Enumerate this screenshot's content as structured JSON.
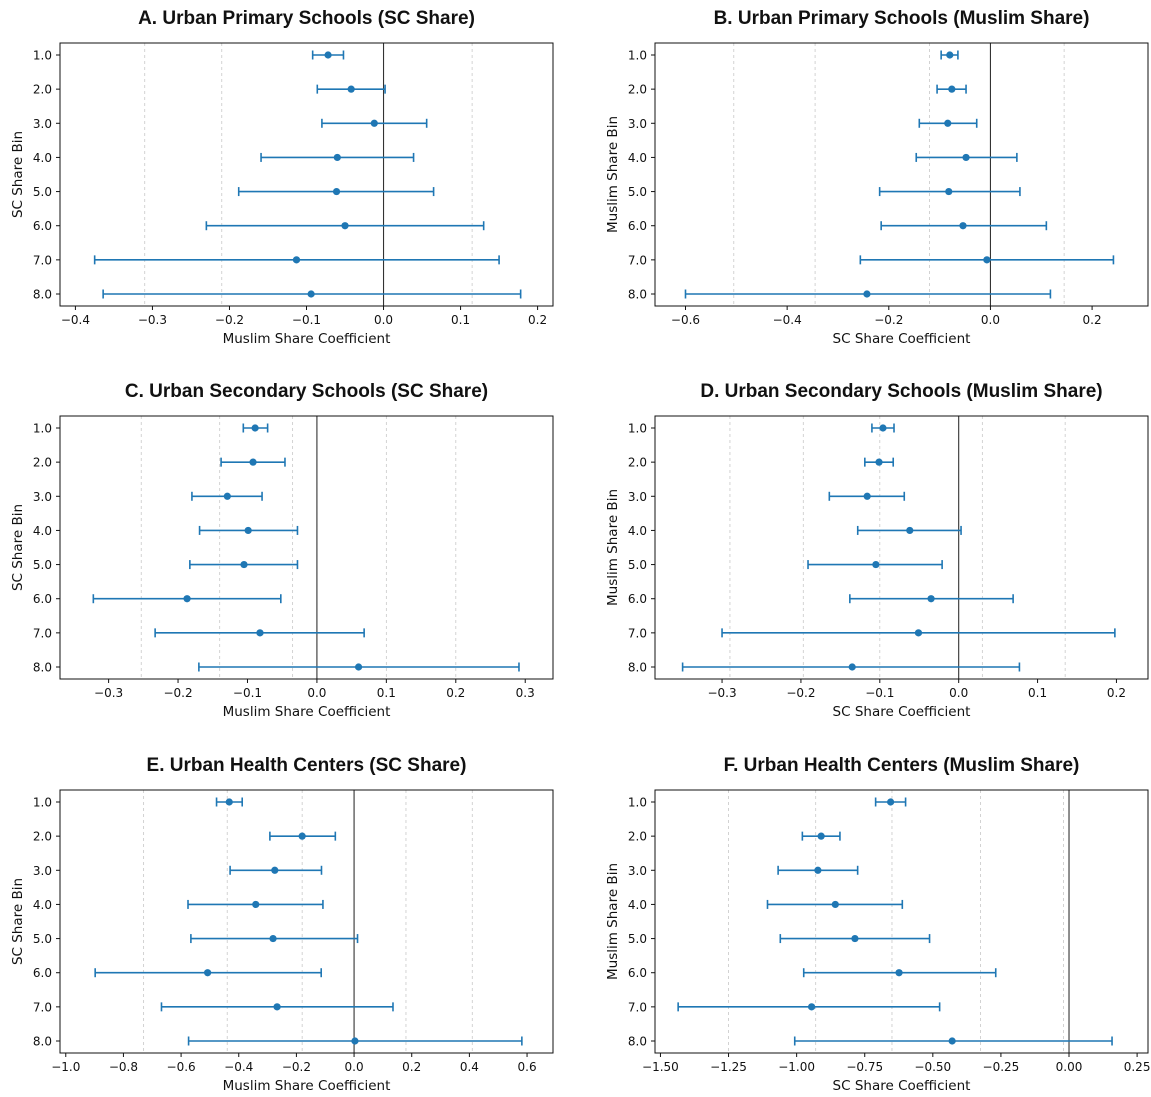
{
  "figure": {
    "marker_color": "#1f77b4",
    "zero_line_color": "#333333",
    "grid_color": "#c8c8c8"
  },
  "chart_data": [
    {
      "id": "A",
      "type": "errorbar",
      "title": "A. Urban Primary Schools (SC Share)",
      "xlabel": "Muslim Share Coefficient",
      "ylabel": "SC Share Bin",
      "xlim": [
        -0.42,
        0.22
      ],
      "xticks": [
        -0.4,
        -0.3,
        -0.2,
        -0.1,
        0.0,
        0.1,
        0.2
      ],
      "xtick_labels": [
        "−0.4",
        "−0.3",
        "−0.2",
        "−0.1",
        "0.0",
        "0.1",
        "0.2"
      ],
      "gridlines": [
        -0.31,
        -0.21,
        0.0,
        0.115
      ],
      "zero_line": 0.0,
      "categories": [
        "1.0",
        "2.0",
        "3.0",
        "4.0",
        "5.0",
        "6.0",
        "7.0",
        "8.0"
      ],
      "estimates": [
        -0.072,
        -0.042,
        -0.012,
        -0.06,
        -0.061,
        -0.05,
        -0.113,
        -0.094
      ],
      "ci_low": [
        -0.092,
        -0.086,
        -0.08,
        -0.159,
        -0.188,
        -0.23,
        -0.375,
        -0.364
      ],
      "ci_high": [
        -0.052,
        0.002,
        0.056,
        0.039,
        0.065,
        0.13,
        0.15,
        0.178
      ]
    },
    {
      "id": "B",
      "type": "errorbar",
      "title": "B. Urban Primary Schools (Muslim Share)",
      "xlabel": "SC Share Coefficient",
      "ylabel": "Muslim Share Bin",
      "xlim": [
        -0.66,
        0.31
      ],
      "xticks": [
        -0.6,
        -0.4,
        -0.2,
        0.0,
        0.2
      ],
      "xtick_labels": [
        "−0.6",
        "−0.4",
        "−0.2",
        "0.0",
        "0.2"
      ],
      "gridlines": [
        -0.505,
        -0.345,
        -0.12,
        0.0,
        0.145
      ],
      "zero_line": 0.0,
      "categories": [
        "1.0",
        "2.0",
        "3.0",
        "4.0",
        "5.0",
        "6.0",
        "7.0",
        "8.0"
      ],
      "estimates": [
        -0.08,
        -0.076,
        -0.084,
        -0.048,
        -0.082,
        -0.054,
        -0.007,
        -0.243
      ],
      "ci_low": [
        -0.097,
        -0.105,
        -0.14,
        -0.146,
        -0.218,
        -0.215,
        -0.256,
        -0.6
      ],
      "ci_high": [
        -0.064,
        -0.048,
        -0.027,
        0.052,
        0.058,
        0.11,
        0.242,
        0.118
      ]
    },
    {
      "id": "C",
      "type": "errorbar",
      "title": "C. Urban Secondary Schools (SC Share)",
      "xlabel": "Muslim Share Coefficient",
      "ylabel": "SC Share Bin",
      "xlim": [
        -0.37,
        0.34
      ],
      "xticks": [
        -0.3,
        -0.2,
        -0.1,
        0.0,
        0.1,
        0.2,
        0.3
      ],
      "xtick_labels": [
        "−0.3",
        "−0.2",
        "−0.1",
        "0.0",
        "0.1",
        "0.2",
        "0.3"
      ],
      "gridlines": [
        -0.253,
        -0.14,
        -0.035,
        0.0,
        0.1,
        0.2
      ],
      "zero_line": 0.0,
      "categories": [
        "1.0",
        "2.0",
        "3.0",
        "4.0",
        "5.0",
        "6.0",
        "7.0",
        "8.0"
      ],
      "estimates": [
        -0.089,
        -0.092,
        -0.129,
        -0.099,
        -0.105,
        -0.187,
        -0.082,
        0.06
      ],
      "ci_low": [
        -0.106,
        -0.138,
        -0.18,
        -0.169,
        -0.183,
        -0.322,
        -0.233,
        -0.17
      ],
      "ci_high": [
        -0.071,
        -0.046,
        -0.079,
        -0.028,
        -0.028,
        -0.052,
        0.068,
        0.291
      ]
    },
    {
      "id": "D",
      "type": "errorbar",
      "title": "D. Urban Secondary Schools (Muslim Share)",
      "xlabel": "SC Share Coefficient",
      "ylabel": "Muslim Share Bin",
      "xlim": [
        -0.385,
        0.24
      ],
      "xticks": [
        -0.3,
        -0.2,
        -0.1,
        0.0,
        0.1,
        0.2
      ],
      "xtick_labels": [
        "−0.3",
        "−0.2",
        "−0.1",
        "0.0",
        "0.1",
        "0.2"
      ],
      "gridlines": [
        -0.29,
        -0.197,
        -0.1,
        0.03,
        0.135
      ],
      "zero_line": 0.0,
      "categories": [
        "1.0",
        "2.0",
        "3.0",
        "4.0",
        "5.0",
        "6.0",
        "7.0",
        "8.0"
      ],
      "estimates": [
        -0.096,
        -0.101,
        -0.116,
        -0.062,
        -0.105,
        -0.035,
        -0.051,
        -0.135
      ],
      "ci_low": [
        -0.11,
        -0.119,
        -0.164,
        -0.128,
        -0.191,
        -0.138,
        -0.3,
        -0.35
      ],
      "ci_high": [
        -0.082,
        -0.083,
        -0.069,
        0.003,
        -0.021,
        0.069,
        0.198,
        0.077
      ]
    },
    {
      "id": "E",
      "type": "errorbar",
      "title": "E. Urban Health Centers (SC Share)",
      "xlabel": "Muslim Share Coefficient",
      "ylabel": "SC Share Bin",
      "xlim": [
        -1.02,
        0.69
      ],
      "xticks": [
        -1.0,
        -0.8,
        -0.6,
        -0.4,
        -0.2,
        0.0,
        0.2,
        0.4,
        0.6
      ],
      "xtick_labels": [
        "−1.0",
        "−0.8",
        "−0.6",
        "−0.4",
        "−0.2",
        "0.0",
        "0.2",
        "0.4",
        "0.6"
      ],
      "gridlines": [
        -0.73,
        -0.44,
        -0.18,
        0.0,
        0.18,
        0.41
      ],
      "zero_line": 0.0,
      "categories": [
        "1.0",
        "2.0",
        "3.0",
        "4.0",
        "5.0",
        "6.0",
        "7.0",
        "8.0"
      ],
      "estimates": [
        -0.433,
        -0.18,
        -0.275,
        -0.341,
        -0.281,
        -0.508,
        -0.267,
        0.003
      ],
      "ci_low": [
        -0.477,
        -0.292,
        -0.43,
        -0.576,
        -0.566,
        -0.898,
        -0.668,
        -0.574
      ],
      "ci_high": [
        -0.388,
        -0.065,
        -0.113,
        -0.108,
        0.012,
        -0.114,
        0.135,
        0.582
      ]
    },
    {
      "id": "F",
      "type": "errorbar",
      "title": "F. Urban Health Centers (Muslim Share)",
      "xlabel": "SC Share Coefficient",
      "ylabel": "Muslim Share Bin",
      "xlim": [
        -1.52,
        0.29
      ],
      "xticks": [
        -1.5,
        -1.25,
        -1.0,
        -0.75,
        -0.5,
        -0.25,
        0.0,
        0.25
      ],
      "xtick_labels": [
        "−1.50",
        "−1.25",
        "−1.00",
        "−0.75",
        "−0.50",
        "−0.25",
        "0.00",
        "0.25"
      ],
      "gridlines": [
        -1.25,
        -0.93,
        -0.65,
        -0.325,
        -0.02
      ],
      "zero_line": 0.0,
      "categories": [
        "1.0",
        "2.0",
        "3.0",
        "4.0",
        "5.0",
        "6.0",
        "7.0",
        "8.0"
      ],
      "estimates": [
        -0.655,
        -0.91,
        -0.922,
        -0.858,
        -0.786,
        -0.624,
        -0.945,
        -0.429
      ],
      "ci_low": [
        -0.71,
        -0.979,
        -1.068,
        -1.107,
        -1.06,
        -0.974,
        -1.435,
        -1.007
      ],
      "ci_high": [
        -0.6,
        -0.841,
        -0.776,
        -0.612,
        -0.512,
        -0.269,
        -0.475,
        0.158
      ]
    }
  ]
}
